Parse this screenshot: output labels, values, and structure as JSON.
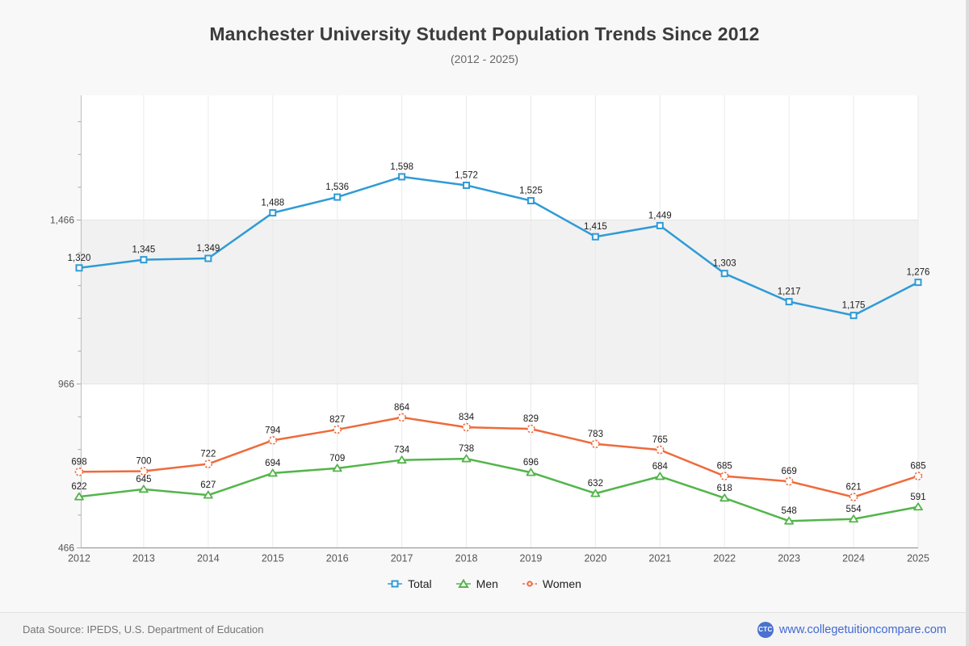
{
  "header": {
    "title": "Manchester University Student Population Trends Since 2012",
    "subtitle": "(2012 - 2025)"
  },
  "chart_data": {
    "type": "line",
    "title": "Manchester University Student Population Trends Since 2012",
    "subtitle": "(2012 - 2025)",
    "categories": [
      "2012",
      "2013",
      "2014",
      "2015",
      "2016",
      "2017",
      "2018",
      "2019",
      "2020",
      "2021",
      "2022",
      "2023",
      "2024",
      "2025"
    ],
    "series": [
      {
        "name": "Total",
        "marker": "square",
        "color": "#2F9BD6",
        "values": [
          1320,
          1345,
          1349,
          1488,
          1536,
          1598,
          1572,
          1525,
          1415,
          1449,
          1303,
          1217,
          1175,
          1276
        ]
      },
      {
        "name": "Men",
        "marker": "triangle",
        "color": "#53B54A",
        "values": [
          622,
          645,
          627,
          694,
          709,
          734,
          738,
          696,
          632,
          684,
          618,
          548,
          554,
          591
        ]
      },
      {
        "name": "Women",
        "marker": "circle",
        "color": "#EF6A3B",
        "values": [
          698,
          700,
          722,
          794,
          827,
          864,
          834,
          829,
          783,
          765,
          685,
          669,
          621,
          685
        ]
      }
    ],
    "xlabel": "",
    "ylabel": "",
    "y_axis_labels": [
      466,
      966,
      1466
    ],
    "minor_tick_step": 100,
    "ylim": [
      466,
      1845
    ],
    "shaded_band": {
      "from": 966,
      "to": 1466
    },
    "grid": "vertical",
    "legend_position": "bottom",
    "data_labels": true
  },
  "footer": {
    "source": "Data Source: IPEDS, U.S. Department of Education",
    "logo_text": "CTC",
    "link": "www.collegetuitioncompare.com"
  },
  "colors": {
    "page_bg": "#F8F8F8",
    "plot_bg": "#FFFFFF",
    "band_fill": "#F1F1F1",
    "band_edge": "#E4E4E4",
    "gridline": "#EAEAEA",
    "x_axis": "#8C8C8C",
    "y_axis": "#BDBDBD",
    "tick": "#A9A9A9",
    "axis_label": "#555555",
    "data_label": "#1C1C1C",
    "brand_blue": "#4169D2",
    "logo_blue": "#4A72CE"
  }
}
